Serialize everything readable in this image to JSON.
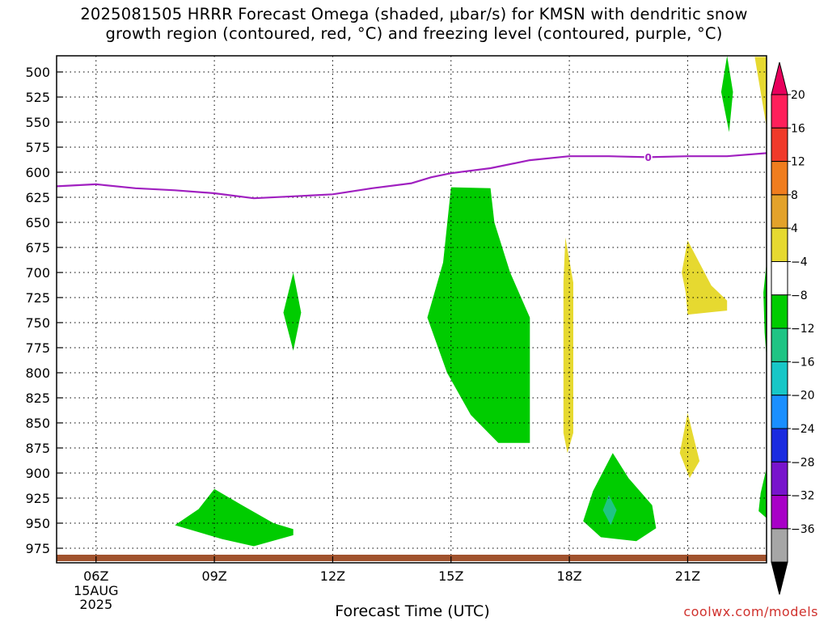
{
  "title": {
    "line1": "2025081505 HRRR Forecast Omega (shaded, μbar/s) for KMSN with dendritic snow",
    "line2": "growth region (contoured, red, °C) and freezing level (contoured, purple, °C)"
  },
  "credit": "coolwx.com/models",
  "chart_data": {
    "type": "area",
    "xlabel": "Forecast Time (UTC)",
    "ylabel": "",
    "x_ticks": [
      "06Z",
      "09Z",
      "12Z",
      "15Z",
      "18Z",
      "21Z"
    ],
    "x_tick_hours": [
      6,
      9,
      12,
      15,
      18,
      21
    ],
    "x_date_label": [
      "15AUG",
      "2025"
    ],
    "xlim": [
      5,
      23
    ],
    "y_ticks": [
      500,
      525,
      550,
      575,
      600,
      625,
      650,
      675,
      700,
      725,
      750,
      775,
      800,
      825,
      850,
      875,
      900,
      925,
      950,
      975
    ],
    "ylim": [
      990,
      487
    ],
    "grid": true,
    "freezing_level": {
      "label": "0",
      "color": "#a020c0",
      "points": [
        [
          5,
          614
        ],
        [
          6,
          612
        ],
        [
          7,
          616
        ],
        [
          8,
          618
        ],
        [
          9,
          621
        ],
        [
          10,
          626
        ],
        [
          11,
          624
        ],
        [
          12,
          622
        ],
        [
          13,
          616
        ],
        [
          14,
          611
        ],
        [
          14.5,
          605
        ],
        [
          15,
          601
        ],
        [
          16,
          596
        ],
        [
          17,
          588
        ],
        [
          18,
          584
        ],
        [
          19,
          584
        ],
        [
          20,
          585
        ],
        [
          21,
          584
        ],
        [
          22,
          584
        ],
        [
          23,
          581
        ]
      ]
    },
    "colorbar": {
      "labels": [
        "20",
        "16",
        "12",
        "8",
        "4",
        "−4",
        "−8",
        "−12",
        "−16",
        "−20",
        "−24",
        "−28",
        "−32",
        "−36"
      ],
      "colors_top_down": [
        "#ff1f5a",
        "#f03a2a",
        "#f07d1e",
        "#e3a22a",
        "#e6d930",
        "#ffffff",
        "#00cc00",
        "#1fc484",
        "#17c7c7",
        "#1a8fff",
        "#1a2be0",
        "#7814cc",
        "#a800c7",
        "#a6a6a6"
      ],
      "top_cap": "#e8005c",
      "bottom_cap": "#000000"
    },
    "omega_regions": [
      {
        "value_band": "-8 to -4",
        "color": "#00cc00",
        "points": [
          [
            11.0,
            700
          ],
          [
            11.2,
            740
          ],
          [
            11.0,
            778
          ],
          [
            10.75,
            740
          ]
        ]
      },
      {
        "value_band": "-8 to -4",
        "color": "#00cc00",
        "points": [
          [
            15.0,
            615
          ],
          [
            16.0,
            616
          ],
          [
            16.1,
            650
          ],
          [
            16.5,
            700
          ],
          [
            17.0,
            745
          ],
          [
            17.0,
            870
          ],
          [
            16.2,
            870
          ],
          [
            15.5,
            842
          ],
          [
            14.9,
            800
          ],
          [
            14.4,
            745
          ],
          [
            14.8,
            690
          ]
        ]
      },
      {
        "value_band": "-8 to -4",
        "color": "#00cc00",
        "points": [
          [
            9.0,
            916
          ],
          [
            9.7,
            932
          ],
          [
            10.5,
            950
          ],
          [
            11.0,
            956
          ],
          [
            11.0,
            962
          ],
          [
            10.0,
            973
          ],
          [
            9.2,
            966
          ],
          [
            8.0,
            952
          ],
          [
            8.6,
            936
          ]
        ]
      },
      {
        "value_band": "-8 to -4",
        "color": "#00cc00",
        "points": [
          [
            19.1,
            880
          ],
          [
            19.5,
            905
          ],
          [
            20.1,
            932
          ],
          [
            20.2,
            955
          ],
          [
            19.7,
            968
          ],
          [
            18.8,
            964
          ],
          [
            18.35,
            948
          ],
          [
            18.6,
            918
          ]
        ]
      },
      {
        "value_band": "-12 to -8",
        "color": "#1fc484",
        "points": [
          [
            19.0,
            922
          ],
          [
            19.2,
            937
          ],
          [
            19.05,
            952
          ],
          [
            18.85,
            937
          ]
        ]
      },
      {
        "value_band": "-8 to -4",
        "color": "#00cc00",
        "points": [
          [
            22.0,
            483
          ],
          [
            22.15,
            520
          ],
          [
            22.05,
            560
          ],
          [
            21.85,
            520
          ]
        ]
      },
      {
        "value_band": "-8 to -4",
        "color": "#00cc00",
        "points": [
          [
            23.0,
            690
          ],
          [
            23.0,
            785
          ],
          [
            22.95,
            760
          ],
          [
            22.92,
            720
          ]
        ]
      },
      {
        "value_band": "-8 to -4",
        "color": "#00cc00",
        "points": [
          [
            23.0,
            895
          ],
          [
            23.0,
            945
          ],
          [
            22.8,
            938
          ],
          [
            22.85,
            920
          ]
        ]
      },
      {
        "value_band": "4 to 8",
        "color": "#e6d930",
        "points": [
          [
            17.9,
            665
          ],
          [
            18.1,
            710
          ],
          [
            18.1,
            860
          ],
          [
            17.95,
            880
          ],
          [
            17.85,
            860
          ],
          [
            17.85,
            710
          ]
        ]
      },
      {
        "value_band": "4 to 8",
        "color": "#e6d930",
        "points": [
          [
            21.0,
            668
          ],
          [
            21.6,
            713
          ],
          [
            22.0,
            728
          ],
          [
            22.0,
            738
          ],
          [
            21.0,
            742
          ],
          [
            20.95,
            720
          ],
          [
            20.85,
            700
          ]
        ]
      },
      {
        "value_band": "4 to 8",
        "color": "#e6d930",
        "points": [
          [
            21.0,
            840
          ],
          [
            21.3,
            888
          ],
          [
            21.05,
            905
          ],
          [
            20.8,
            880
          ]
        ]
      },
      {
        "value_band": "4 to 8",
        "color": "#e6d930",
        "points": [
          [
            22.7,
            485
          ],
          [
            23.0,
            485
          ],
          [
            23.0,
            555
          ],
          [
            22.85,
            520
          ]
        ]
      }
    ]
  }
}
